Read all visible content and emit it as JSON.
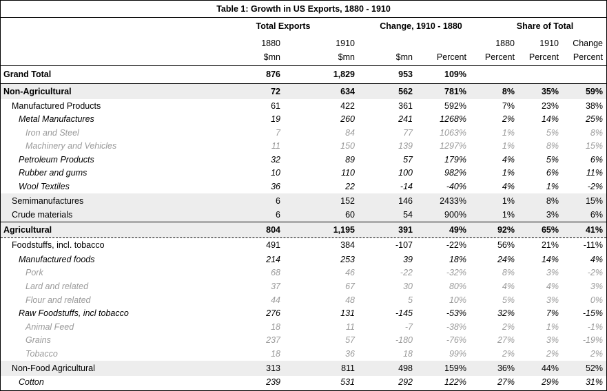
{
  "title": "Table 1: Growth in US Exports, 1880 - 1910",
  "groups": [
    "Total Exports",
    "Change, 1910 - 1880",
    "Share of Total"
  ],
  "header_row1": [
    "1880",
    "1910",
    "",
    "",
    "1880",
    "1910",
    "Change"
  ],
  "header_row2": [
    "$mn",
    "$mn",
    "$mn",
    "Percent",
    "Percent",
    "Percent",
    "Percent"
  ],
  "rows": [
    {
      "label": "Grand Total",
      "values": [
        "876",
        "1,829",
        "953",
        "109%",
        "",
        "",
        ""
      ]
    },
    {
      "label": "Non-Agricultural",
      "values": [
        "72",
        "634",
        "562",
        "781%",
        "8%",
        "35%",
        "59%"
      ]
    },
    {
      "label": "Manufactured Products",
      "values": [
        "61",
        "422",
        "361",
        "592%",
        "7%",
        "23%",
        "38%"
      ]
    },
    {
      "label": "Metal Manufactures",
      "values": [
        "19",
        "260",
        "241",
        "1268%",
        "2%",
        "14%",
        "25%"
      ]
    },
    {
      "label": "Iron and Steel",
      "values": [
        "7",
        "84",
        "77",
        "1063%",
        "1%",
        "5%",
        "8%"
      ]
    },
    {
      "label": "Machinery and Vehicles",
      "values": [
        "11",
        "150",
        "139",
        "1297%",
        "1%",
        "8%",
        "15%"
      ]
    },
    {
      "label": "Petroleum Products",
      "values": [
        "32",
        "89",
        "57",
        "179%",
        "4%",
        "5%",
        "6%"
      ]
    },
    {
      "label": "Rubber and gums",
      "values": [
        "10",
        "110",
        "100",
        "982%",
        "1%",
        "6%",
        "11%"
      ]
    },
    {
      "label": "Wool Textiles",
      "values": [
        "36",
        "22",
        "-14",
        "-40%",
        "4%",
        "1%",
        "-2%"
      ]
    },
    {
      "label": "Semimanufactures",
      "values": [
        "6",
        "152",
        "146",
        "2433%",
        "1%",
        "8%",
        "15%"
      ]
    },
    {
      "label": "Crude materials",
      "values": [
        "6",
        "60",
        "54",
        "900%",
        "1%",
        "3%",
        "6%"
      ]
    },
    {
      "label": "Agricultural",
      "values": [
        "804",
        "1,195",
        "391",
        "49%",
        "92%",
        "65%",
        "41%"
      ]
    },
    {
      "label": "Foodstuffs, incl. tobacco",
      "values": [
        "491",
        "384",
        "-107",
        "-22%",
        "56%",
        "21%",
        "-11%"
      ]
    },
    {
      "label": "Manufactured foods",
      "values": [
        "214",
        "253",
        "39",
        "18%",
        "24%",
        "14%",
        "4%"
      ]
    },
    {
      "label": "Pork",
      "values": [
        "68",
        "46",
        "-22",
        "-32%",
        "8%",
        "3%",
        "-2%"
      ]
    },
    {
      "label": "Lard and related",
      "values": [
        "37",
        "67",
        "30",
        "80%",
        "4%",
        "4%",
        "3%"
      ]
    },
    {
      "label": "Flour and related",
      "values": [
        "44",
        "48",
        "5",
        "10%",
        "5%",
        "3%",
        "0%"
      ]
    },
    {
      "label": "Raw Foodstuffs, incl tobacco",
      "values": [
        "276",
        "131",
        "-145",
        "-53%",
        "32%",
        "7%",
        "-15%"
      ]
    },
    {
      "label": "Animal Feed",
      "values": [
        "18",
        "11",
        "-7",
        "-38%",
        "2%",
        "1%",
        "-1%"
      ]
    },
    {
      "label": "Grains",
      "values": [
        "237",
        "57",
        "-180",
        "-76%",
        "27%",
        "3%",
        "-19%"
      ]
    },
    {
      "label": "Tobacco",
      "values": [
        "18",
        "36",
        "18",
        "99%",
        "2%",
        "2%",
        "2%"
      ]
    },
    {
      "label": "Non-Food Agricultural",
      "values": [
        "313",
        "811",
        "498",
        "159%",
        "36%",
        "44%",
        "52%"
      ]
    },
    {
      "label": "Cotton",
      "values": [
        "239",
        "531",
        "292",
        "122%",
        "27%",
        "29%",
        "31%"
      ]
    }
  ]
}
